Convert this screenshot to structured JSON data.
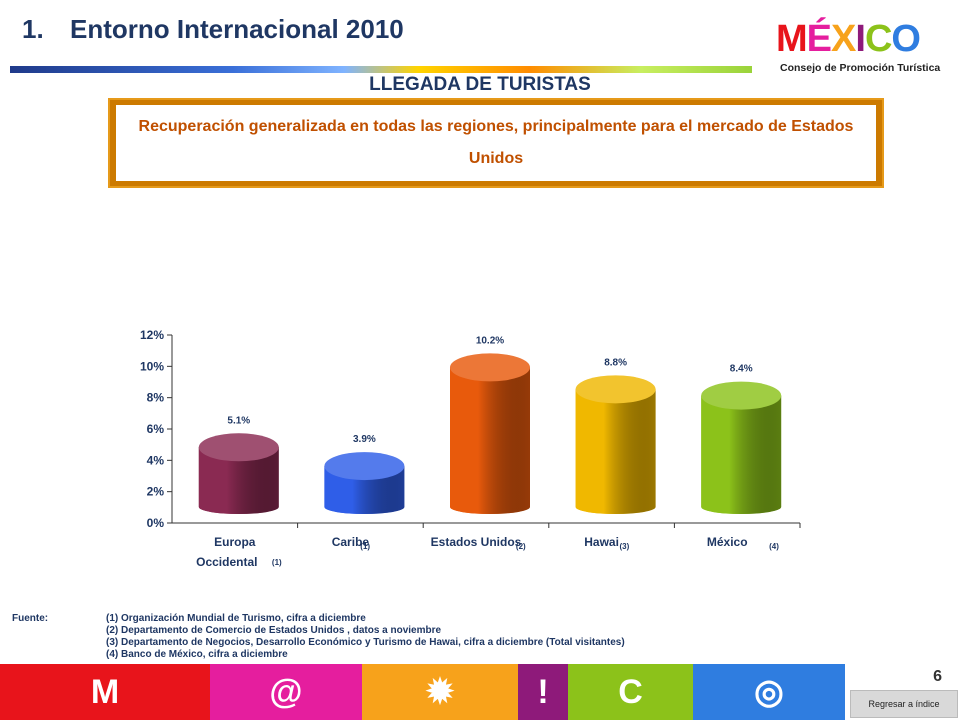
{
  "header": {
    "number": "1.",
    "title": "Entorno Internacional 2010",
    "section": "LLEGADA DE TURISTAS"
  },
  "logo": {
    "word": "MÉXICO",
    "subtitle": "Consejo de Promoción Turística"
  },
  "callout": "Recuperación generalizada en todas las regiones, principalmente para el mercado de Estados Unidos",
  "chart_data": {
    "type": "bar",
    "categories": [
      "Europa Occidental",
      "Caribe",
      "Estados Unidos",
      "Hawai",
      "México"
    ],
    "category_refs": [
      "(1)",
      "(1)",
      "(2)",
      "(3)",
      "(4)"
    ],
    "values": [
      5.1,
      3.9,
      10.2,
      8.8,
      8.4
    ],
    "data_labels": [
      "5.1%",
      "3.9%",
      "10.2%",
      "8.8%",
      "8.4%"
    ],
    "colors": [
      "#8a2a52",
      "#2f5ee8",
      "#e85a0c",
      "#f0b800",
      "#8cc21a"
    ],
    "ylim": [
      0,
      12
    ],
    "yticks": [
      "0%",
      "2%",
      "4%",
      "6%",
      "8%",
      "10%",
      "12%"
    ],
    "grid": false,
    "title": "",
    "xlabel": "",
    "ylabel": ""
  },
  "source": {
    "label": "Fuente:",
    "lines": [
      "(1) Organización  Mundial de Turismo, cifra a diciembre",
      "(2) Departamento de Comercio de Estados Unidos , datos a noviembre",
      "(3) Departamento de Negocios, Desarrollo Económico y Turismo de Hawai, cifra a diciembre (Total visitantes)",
      "(4) Banco de México, cifra a diciembre"
    ]
  },
  "footer": {
    "page_number": "6",
    "back_label": "Regresar a índice",
    "stripes": [
      {
        "color": "#e8141b",
        "icon": "ruin-icon"
      },
      {
        "color": "#e51e9e",
        "icon": "spiral-icon"
      },
      {
        "color": "#f7a21b",
        "icon": "star-icon"
      },
      {
        "color": "#8e1a7a",
        "icon": "exclaim-icon"
      },
      {
        "color": "#8cc21a",
        "icon": "circle-icon"
      },
      {
        "color": "#2f7de0",
        "icon": "wheel-icon"
      }
    ]
  }
}
